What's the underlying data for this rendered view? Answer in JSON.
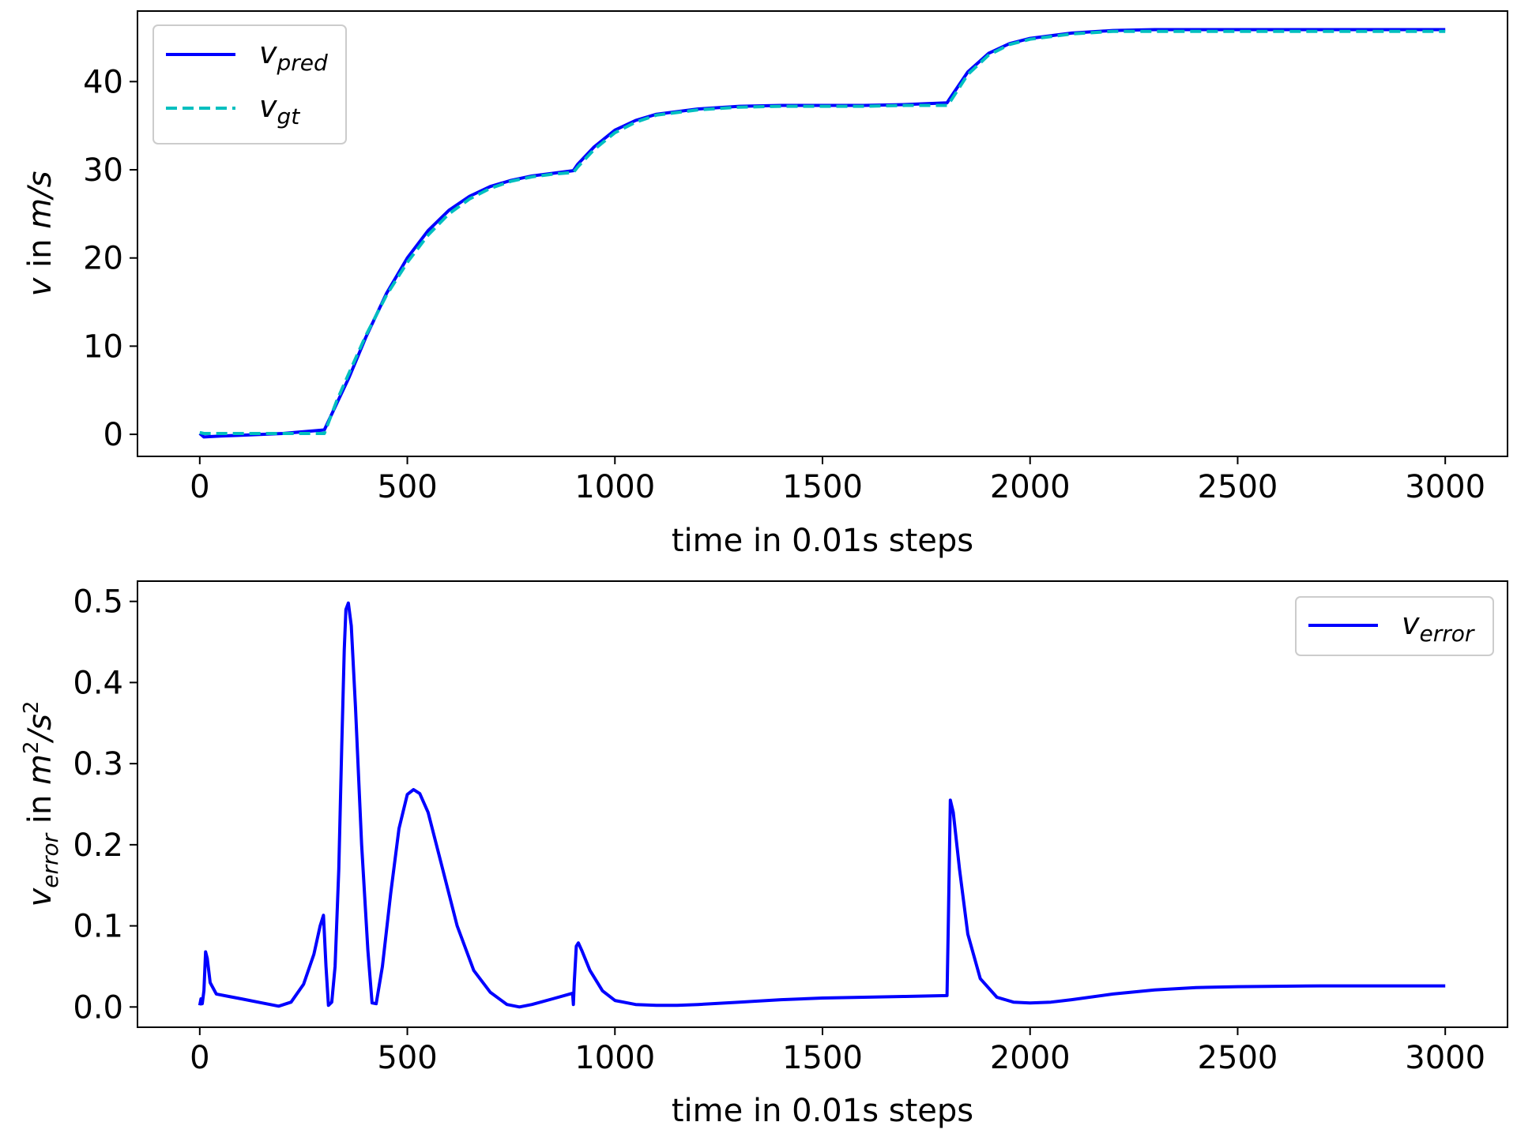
{
  "colors": {
    "pred": "#0000ff",
    "gt": "#00bfbf",
    "axis": "#000000",
    "legend_border": "#cccccc"
  },
  "chart_data": [
    {
      "type": "line",
      "xlabel": "time in 0.01s steps",
      "ylabel": {
        "symbol": "v",
        "rest": " in ",
        "unit": "m/s"
      },
      "xlim": [
        -150,
        3150
      ],
      "ylim": [
        -2.5,
        48
      ],
      "xticks": [
        0,
        500,
        1000,
        1500,
        2000,
        2500,
        3000
      ],
      "yticks": [
        0,
        10,
        20,
        30,
        40
      ],
      "grid": false,
      "legend_position": "upper-left",
      "series": [
        {
          "name": "v_pred",
          "base": "v",
          "sub": "pred",
          "color": "#0000ff",
          "dash": "solid",
          "x": [
            0,
            10,
            50,
            100,
            200,
            300,
            330,
            360,
            400,
            450,
            500,
            550,
            600,
            650,
            700,
            750,
            800,
            850,
            900,
            910,
            950,
            1000,
            1050,
            1100,
            1200,
            1300,
            1400,
            1500,
            1600,
            1700,
            1800,
            1810,
            1850,
            1900,
            1950,
            2000,
            2100,
            2200,
            2300,
            2400,
            2500,
            2600,
            2700,
            2800,
            2900,
            3000
          ],
          "y": [
            0.1,
            -0.3,
            -0.2,
            -0.1,
            0.1,
            0.5,
            3.5,
            6.5,
            11,
            16,
            20,
            23.1,
            25.4,
            27,
            28.1,
            28.8,
            29.3,
            29.6,
            29.9,
            30.6,
            32.6,
            34.5,
            35.6,
            36.3,
            36.9,
            37.2,
            37.3,
            37.3,
            37.3,
            37.4,
            37.6,
            38.3,
            41.1,
            43.2,
            44.3,
            44.9,
            45.5,
            45.8,
            45.9,
            45.9,
            45.9,
            45.9,
            45.9,
            45.9,
            45.9,
            45.9
          ]
        },
        {
          "name": "v_gt",
          "base": "v",
          "sub": "gt",
          "color": "#00bfbf",
          "dash": "dashed",
          "x": [
            0,
            10,
            50,
            100,
            200,
            300,
            330,
            360,
            400,
            450,
            500,
            550,
            600,
            650,
            700,
            750,
            800,
            850,
            900,
            910,
            950,
            1000,
            1050,
            1100,
            1200,
            1300,
            1400,
            1500,
            1600,
            1700,
            1800,
            1810,
            1850,
            1900,
            1950,
            2000,
            2100,
            2200,
            2300,
            2400,
            2500,
            2600,
            2700,
            2800,
            2900,
            3000
          ],
          "y": [
            0.2,
            0.1,
            0.1,
            0.1,
            0.1,
            0.1,
            3.8,
            7.0,
            11.2,
            15.8,
            19.5,
            22.6,
            25.0,
            26.7,
            27.9,
            28.7,
            29.2,
            29.5,
            29.7,
            30.3,
            32.3,
            34.2,
            35.4,
            36.2,
            36.8,
            37.1,
            37.2,
            37.2,
            37.2,
            37.3,
            37.3,
            37.9,
            40.8,
            43.0,
            44.2,
            44.8,
            45.4,
            45.7,
            45.7,
            45.7,
            45.7,
            45.7,
            45.7,
            45.7,
            45.7,
            45.7
          ]
        }
      ]
    },
    {
      "type": "line",
      "xlabel": "time in 0.01s steps",
      "ylabel": {
        "symbol": "v",
        "sub": "error",
        "rest": " in ",
        "unit": "m",
        "sup1": "2",
        "slash": "/",
        "unit2": "s",
        "sup2": "2"
      },
      "xlim": [
        -150,
        3150
      ],
      "ylim": [
        -0.025,
        0.525
      ],
      "xticks": [
        0,
        500,
        1000,
        1500,
        2000,
        2500,
        3000
      ],
      "yticks": [
        "0.0",
        "0.1",
        "0.2",
        "0.3",
        "0.4",
        "0.5"
      ],
      "grid": false,
      "legend_position": "upper-right",
      "series": [
        {
          "name": "v_error",
          "base": "v",
          "sub": "error",
          "color": "#0000ff",
          "dash": "solid",
          "x": [
            0,
            3,
            6,
            10,
            14,
            18,
            25,
            40,
            70,
            100,
            150,
            190,
            220,
            250,
            275,
            290,
            298,
            304,
            310,
            318,
            326,
            335,
            342,
            348,
            352,
            358,
            365,
            375,
            390,
            405,
            415,
            425,
            440,
            460,
            480,
            500,
            515,
            530,
            550,
            580,
            620,
            660,
            700,
            740,
            770,
            800,
            850,
            898,
            900,
            902,
            907,
            912,
            920,
            940,
            970,
            1000,
            1050,
            1100,
            1150,
            1200,
            1300,
            1400,
            1500,
            1600,
            1700,
            1798,
            1800,
            1803,
            1808,
            1815,
            1830,
            1850,
            1880,
            1920,
            1960,
            2000,
            2050,
            2100,
            2200,
            2300,
            2400,
            2500,
            2700,
            3000
          ],
          "y": [
            0.002,
            0.01,
            0.004,
            0.02,
            0.068,
            0.06,
            0.03,
            0.016,
            0.013,
            0.01,
            0.005,
            0.001,
            0.006,
            0.028,
            0.065,
            0.1,
            0.113,
            0.05,
            0.002,
            0.006,
            0.05,
            0.17,
            0.32,
            0.44,
            0.49,
            0.498,
            0.47,
            0.37,
            0.2,
            0.07,
            0.005,
            0.004,
            0.05,
            0.14,
            0.22,
            0.262,
            0.268,
            0.263,
            0.24,
            0.18,
            0.1,
            0.045,
            0.018,
            0.003,
            0.0,
            0.003,
            0.01,
            0.017,
            0.003,
            0.03,
            0.075,
            0.079,
            0.07,
            0.045,
            0.02,
            0.008,
            0.003,
            0.002,
            0.002,
            0.003,
            0.006,
            0.009,
            0.011,
            0.012,
            0.013,
            0.014,
            0.014,
            0.1,
            0.255,
            0.24,
            0.17,
            0.09,
            0.035,
            0.012,
            0.006,
            0.005,
            0.006,
            0.009,
            0.016,
            0.021,
            0.024,
            0.025,
            0.026,
            0.026
          ]
        }
      ]
    }
  ]
}
